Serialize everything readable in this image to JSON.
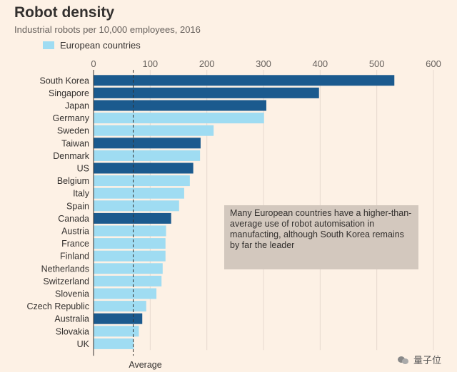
{
  "chart_data": {
    "type": "bar",
    "orientation": "horizontal",
    "title": "Robot density",
    "subtitle": "Industrial robots per 10,000 employees, 2016",
    "legend": [
      {
        "label": "European countries",
        "color": "#9fdcf2"
      }
    ],
    "categories": [
      "South Korea",
      "Singapore",
      "Japan",
      "Germany",
      "Sweden",
      "Taiwan",
      "Denmark",
      "US",
      "Belgium",
      "Italy",
      "Spain",
      "Canada",
      "Austria",
      "France",
      "Finland",
      "Netherlands",
      "Switzerland",
      "Slovenia",
      "Czech Republic",
      "Australia",
      "Slovakia",
      "UK"
    ],
    "values": [
      531,
      398,
      305,
      301,
      212,
      189,
      188,
      176,
      170,
      160,
      151,
      137,
      128,
      127,
      127,
      122,
      120,
      111,
      93,
      86,
      80,
      71
    ],
    "european": [
      false,
      false,
      false,
      true,
      true,
      false,
      true,
      false,
      true,
      true,
      true,
      false,
      true,
      true,
      true,
      true,
      true,
      true,
      true,
      false,
      true,
      true
    ],
    "colors": {
      "european": "#9fdcf2",
      "other": "#1b5a8e"
    },
    "xlim": [
      0,
      600
    ],
    "xticks": [
      0,
      100,
      200,
      300,
      400,
      500,
      600
    ],
    "xtick_position": "top",
    "average": {
      "value": 70,
      "label": "Average"
    },
    "annotation": "Many European countries have a higher-than-average use of robot automisation in manufacting, although South Korea remains by far the leader",
    "grid": "vertical"
  },
  "watermark": {
    "text": "量子位"
  }
}
